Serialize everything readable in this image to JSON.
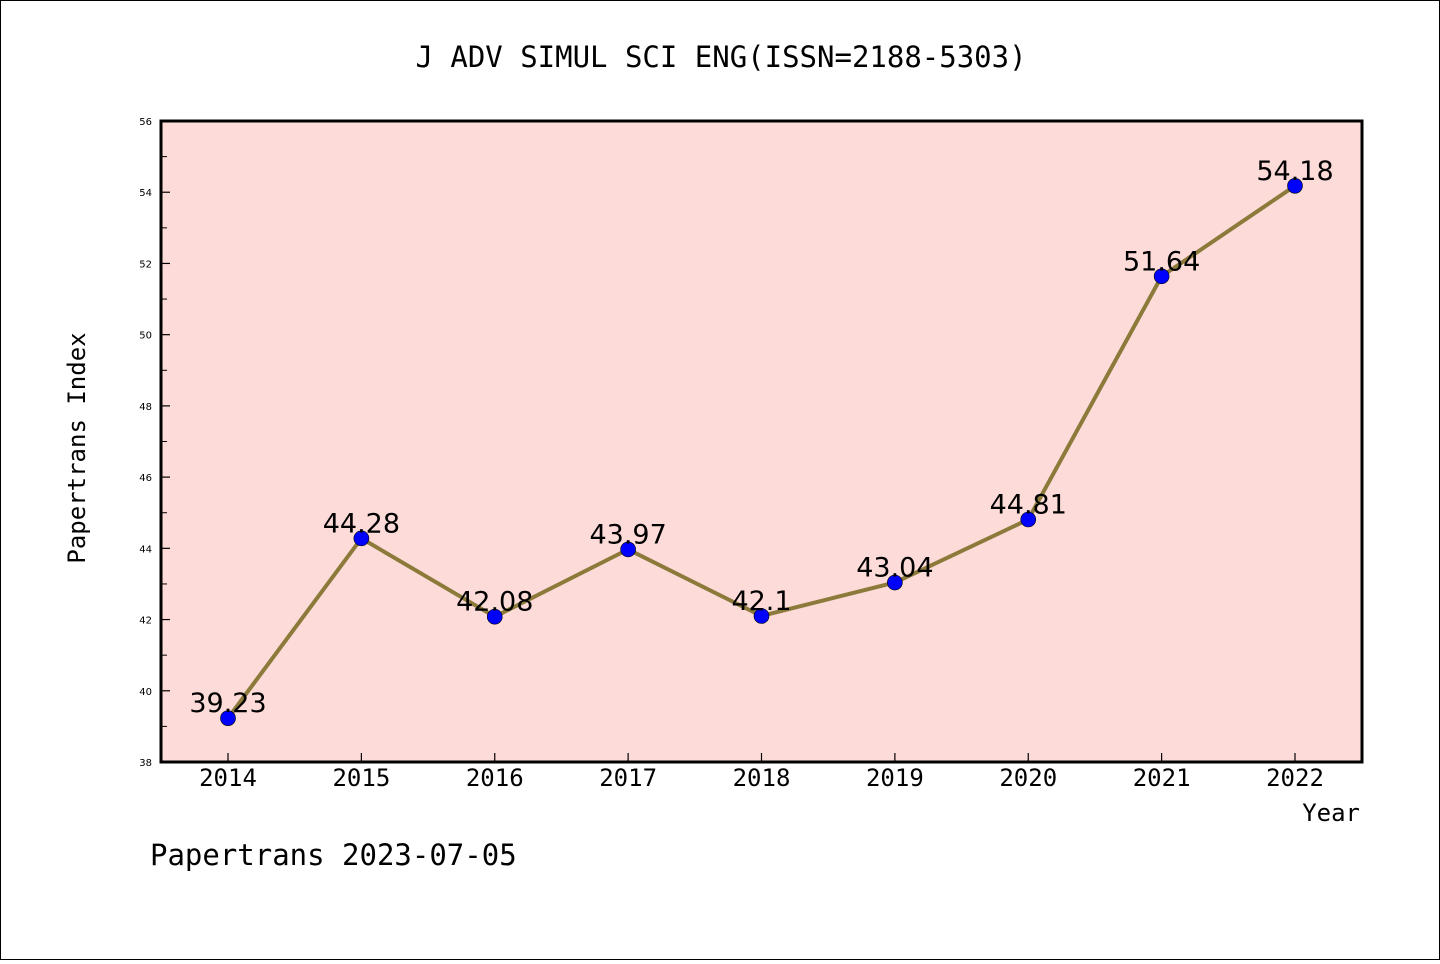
{
  "chart_data": {
    "type": "line",
    "title": "J ADV SIMUL SCI ENG(ISSN=2188-5303)",
    "xlabel": "Year",
    "ylabel": "Papertrans Index",
    "categories": [
      "2014",
      "2015",
      "2016",
      "2017",
      "2018",
      "2019",
      "2020",
      "2021",
      "2022"
    ],
    "values": [
      39.23,
      44.28,
      42.08,
      43.97,
      42.1,
      43.04,
      44.81,
      51.64,
      54.18
    ],
    "data_labels": [
      "39.23",
      "44.28",
      "42.08",
      "43.97",
      "42.1",
      "43.04",
      "44.81",
      "51.64",
      "54.18"
    ],
    "ylim": [
      38,
      56
    ],
    "yticks": [
      38,
      40,
      42,
      44,
      46,
      48,
      50,
      52,
      54,
      56
    ],
    "grid": false,
    "colors": {
      "plot_background": "#fddbd8",
      "line": "#8b7a3a",
      "marker": "#0000ff"
    }
  },
  "footer": {
    "text": "Papertrans 2023-07-05"
  }
}
